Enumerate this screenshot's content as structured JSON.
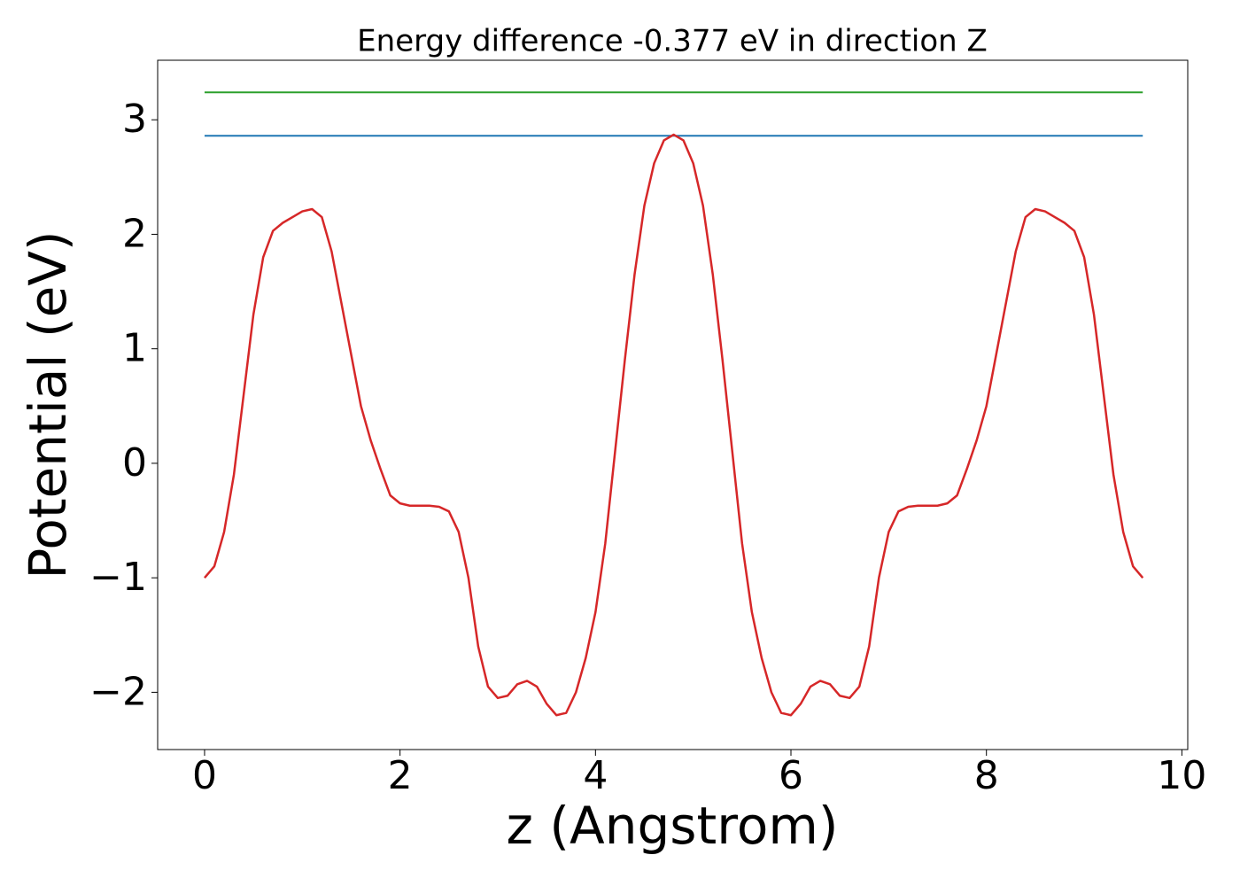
{
  "chart_data": {
    "type": "line",
    "title": "Energy difference -0.377 eV in direction Z",
    "x_label": "z (Angstrom)",
    "y_label": "Potential (eV)",
    "xlim": [
      -0.48,
      10.06
    ],
    "ylim": [
      -2.5,
      3.52
    ],
    "xticks": [
      0,
      2,
      4,
      6,
      8,
      10
    ],
    "yticks": [
      {
        "value": -2,
        "label": "−2"
      },
      {
        "value": -1,
        "label": "−1"
      },
      0,
      1,
      2,
      3
    ],
    "grid": false,
    "series": [
      {
        "color": "#d62728",
        "x": [
          0,
          0.1,
          0.2,
          0.3,
          0.4,
          0.5,
          0.6,
          0.7,
          0.8,
          0.9,
          1.0,
          1.1,
          1.2,
          1.3,
          1.4,
          1.5,
          1.6,
          1.7,
          1.8,
          1.9,
          2.0,
          2.1,
          2.2,
          2.3,
          2.4,
          2.5,
          2.6,
          2.7,
          2.8,
          2.9,
          3.0,
          3.1,
          3.2,
          3.3,
          3.4,
          3.5,
          3.6,
          3.7,
          3.8,
          3.9,
          4.0,
          4.1,
          4.2,
          4.3,
          4.4,
          4.5,
          4.6,
          4.7,
          4.8,
          4.9,
          5.0,
          5.1,
          5.2,
          5.3,
          5.4,
          5.5,
          5.6,
          5.7,
          5.8,
          5.9,
          6.0,
          6.1,
          6.2,
          6.3,
          6.4,
          6.5,
          6.6,
          6.7,
          6.8,
          6.9,
          7.0,
          7.1,
          7.2,
          7.3,
          7.4,
          7.5,
          7.6,
          7.7,
          7.8,
          7.9,
          8.0,
          8.1,
          8.2,
          8.3,
          8.4,
          8.5,
          8.6,
          8.7,
          8.8,
          8.9,
          9.0,
          9.1,
          9.2,
          9.3,
          9.4,
          9.5,
          9.6
        ],
        "values": [
          -1.0,
          -0.9,
          -0.6,
          -0.1,
          0.6,
          1.3,
          1.8,
          2.03,
          2.1,
          2.15,
          2.2,
          2.22,
          2.15,
          1.85,
          1.4,
          0.95,
          0.5,
          0.2,
          -0.05,
          -0.28,
          -0.35,
          -0.37,
          -0.37,
          -0.37,
          -0.38,
          -0.42,
          -0.6,
          -1.0,
          -1.6,
          -1.95,
          -2.05,
          -2.03,
          -1.93,
          -1.9,
          -1.95,
          -2.1,
          -2.2,
          -2.18,
          -2.0,
          -1.7,
          -1.3,
          -0.7,
          0.1,
          0.9,
          1.65,
          2.25,
          2.62,
          2.82,
          2.87,
          2.82,
          2.62,
          2.25,
          1.65,
          0.9,
          0.1,
          -0.7,
          -1.3,
          -1.7,
          -2.0,
          -2.18,
          -2.2,
          -2.1,
          -1.95,
          -1.9,
          -1.93,
          -2.03,
          -2.05,
          -1.95,
          -1.6,
          -1.0,
          -0.6,
          -0.42,
          -0.38,
          -0.37,
          -0.37,
          -0.37,
          -0.35,
          -0.28,
          -0.05,
          0.2,
          0.5,
          0.95,
          1.4,
          1.85,
          2.15,
          2.22,
          2.2,
          2.15,
          2.1,
          2.03,
          1.8,
          1.3,
          0.6,
          -0.1,
          -0.6,
          -0.9,
          -1.0
        ]
      },
      {
        "color": "#1f77b4",
        "x": [
          0,
          9.6
        ],
        "values": [
          2.86,
          2.86
        ]
      },
      {
        "color": "#2ca02c",
        "x": [
          0,
          9.6
        ],
        "values": [
          3.24,
          3.24
        ]
      }
    ]
  }
}
